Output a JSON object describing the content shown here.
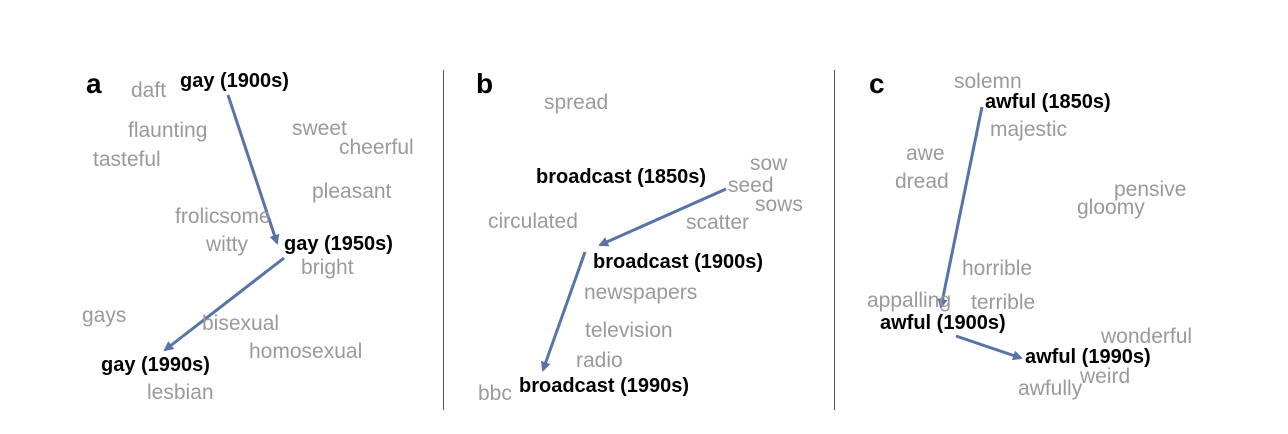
{
  "panels": [
    {
      "label": "a",
      "context_words": [
        "daft",
        "flaunting",
        "sweet",
        "cheerful",
        "tasteful",
        "pleasant",
        "frolicsome",
        "witty",
        "bright",
        "gays",
        "bisexual",
        "homosexual",
        "lesbian"
      ],
      "focus_words": [
        "gay (1900s)",
        "gay (1950s)",
        "gay (1990s)"
      ]
    },
    {
      "label": "b",
      "context_words": [
        "spread",
        "sow",
        "seed",
        "sows",
        "circulated",
        "scatter",
        "newspapers",
        "television",
        "radio",
        "bbc"
      ],
      "focus_words": [
        "broadcast (1850s)",
        "broadcast (1900s)",
        "broadcast (1990s)"
      ]
    },
    {
      "label": "c",
      "context_words": [
        "solemn",
        "majestic",
        "awe",
        "dread",
        "pensive",
        "gloomy",
        "horrible",
        "appalling",
        "terrible",
        "wonderful",
        "weird",
        "awfully"
      ],
      "focus_words": [
        "awful (1850s)",
        "awful (1900s)",
        "awful (1990s)"
      ]
    }
  ],
  "colors": {
    "arrow": "#5873a8",
    "context": "#9a9a9a",
    "focus": "#000000",
    "divider": "#555555"
  }
}
